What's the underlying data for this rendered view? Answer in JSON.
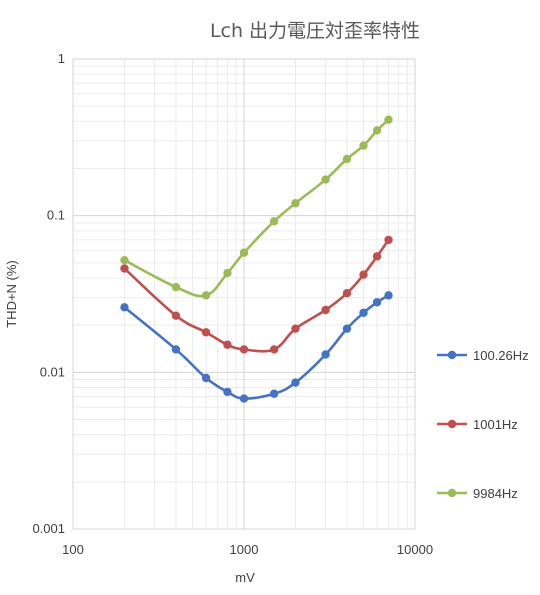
{
  "chart_data": {
    "type": "line",
    "title": "Lch 出力電圧対歪率特性",
    "xlabel": "mV",
    "ylabel": "THD+N (%)",
    "x_scale": "log",
    "y_scale": "log",
    "xlim": [
      100,
      10000
    ],
    "ylim": [
      0.001,
      1
    ],
    "x_ticks": [
      "100",
      "1000",
      "10000"
    ],
    "y_ticks": [
      "0.001",
      "0.01",
      "0.1",
      "1"
    ],
    "grid": true,
    "legend_position": "right",
    "series": [
      {
        "name": "100.26Hz",
        "color": "#4472c4",
        "x": [
          200,
          400,
          600,
          800,
          1000,
          1500,
          2000,
          3000,
          4000,
          5000,
          6000,
          7000
        ],
        "y": [
          0.026,
          0.014,
          0.0092,
          0.0075,
          0.0068,
          0.0073,
          0.0086,
          0.013,
          0.019,
          0.024,
          0.028,
          0.031
        ]
      },
      {
        "name": "1001Hz",
        "color": "#c0504d",
        "x": [
          200,
          400,
          600,
          800,
          1000,
          1500,
          2000,
          3000,
          4000,
          5000,
          6000,
          7000
        ],
        "y": [
          0.046,
          0.023,
          0.018,
          0.015,
          0.014,
          0.014,
          0.019,
          0.025,
          0.032,
          0.042,
          0.055,
          0.07
        ]
      },
      {
        "name": "9984Hz",
        "color": "#9bbb59",
        "x": [
          200,
          400,
          600,
          800,
          1000,
          1500,
          2000,
          3000,
          4000,
          5000,
          6000,
          7000
        ],
        "y": [
          0.052,
          0.035,
          0.031,
          0.043,
          0.058,
          0.092,
          0.12,
          0.17,
          0.23,
          0.28,
          0.35,
          0.41
        ]
      }
    ]
  }
}
